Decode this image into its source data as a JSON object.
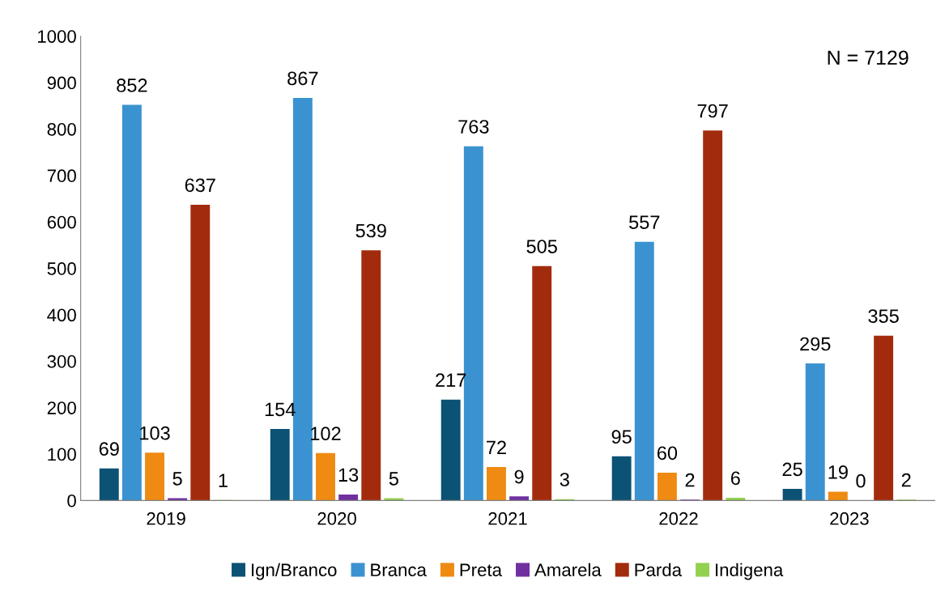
{
  "chart_data": {
    "type": "bar",
    "categories": [
      "2019",
      "2020",
      "2021",
      "2022",
      "2023"
    ],
    "series": [
      {
        "name": "Ign/Branco",
        "color": "#0b5275",
        "values": [
          69,
          154,
          217,
          95,
          25
        ]
      },
      {
        "name": "Branca",
        "color": "#3a93d0",
        "values": [
          852,
          867,
          763,
          557,
          295
        ]
      },
      {
        "name": "Preta",
        "color": "#ef8a12",
        "values": [
          103,
          102,
          72,
          60,
          19
        ]
      },
      {
        "name": "Amarela",
        "color": "#7030a0",
        "values": [
          5,
          13,
          9,
          2,
          0
        ]
      },
      {
        "name": "Parda",
        "color": "#a32b0d",
        "values": [
          637,
          539,
          505,
          797,
          355
        ]
      },
      {
        "name": "Indigena",
        "color": "#92d050",
        "values": [
          1,
          5,
          3,
          6,
          2
        ]
      }
    ],
    "ylim": [
      0,
      1000
    ],
    "yticks": [
      0,
      100,
      200,
      300,
      400,
      500,
      600,
      700,
      800,
      900,
      1000
    ],
    "annotations": [
      "N = 7129"
    ],
    "data_labels": true,
    "grid": false,
    "legend": "bottom"
  }
}
